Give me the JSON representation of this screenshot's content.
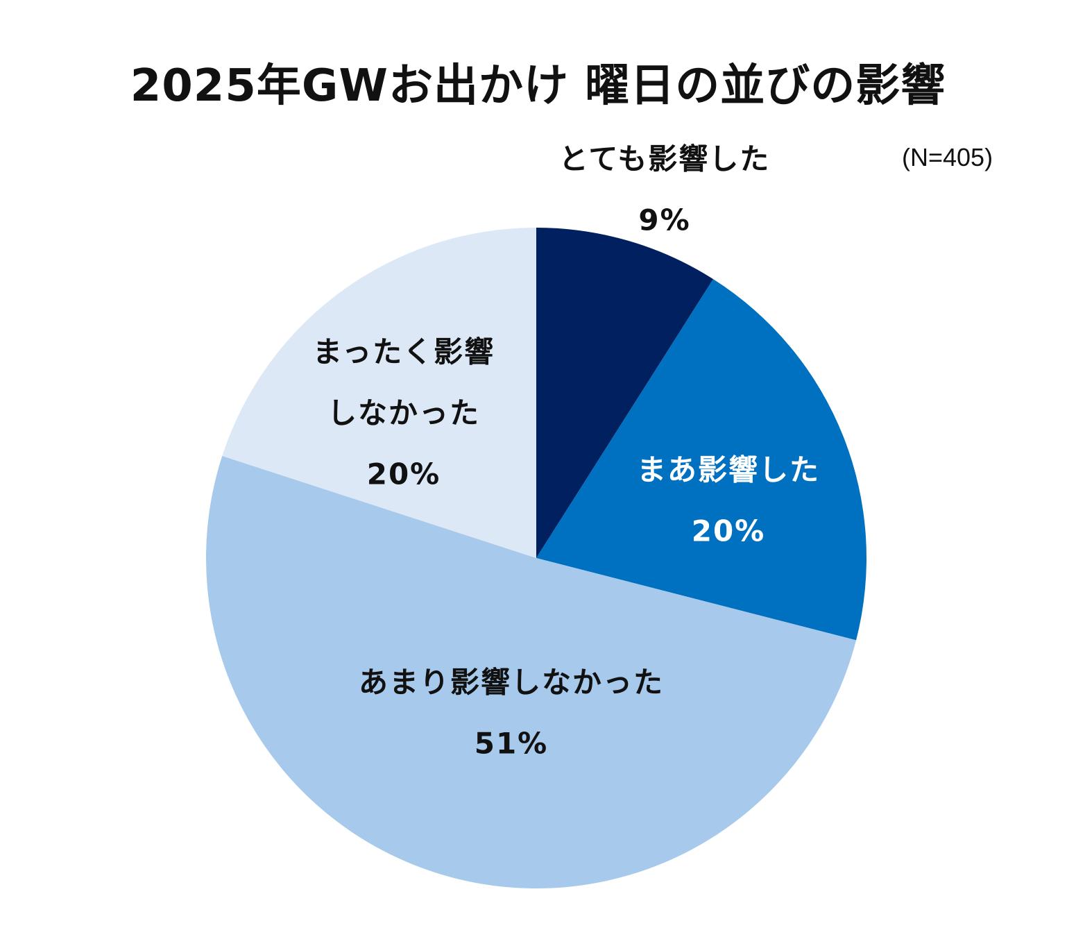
{
  "chart_data": {
    "type": "pie",
    "title": "2025年GWお出かけ 曜日の並びの影響",
    "note": "(N=405)",
    "slices": [
      {
        "label_lines": [
          "とても影響した"
        ],
        "value_label": "9%",
        "value": 9,
        "color": "#002060",
        "label_color": "#111111"
      },
      {
        "label_lines": [
          "まあ影響した"
        ],
        "value_label": "20%",
        "value": 20,
        "color": "#0070C0",
        "label_color": "#ffffff"
      },
      {
        "label_lines": [
          "あまり影響しなかった"
        ],
        "value_label": "51%",
        "value": 51,
        "color": "#A7C9EB",
        "label_color": "#111111"
      },
      {
        "label_lines": [
          "まったく影響",
          "しなかった"
        ],
        "value_label": "20%",
        "value": 20,
        "color": "#DCE8F6",
        "label_color": "#111111"
      }
    ]
  }
}
